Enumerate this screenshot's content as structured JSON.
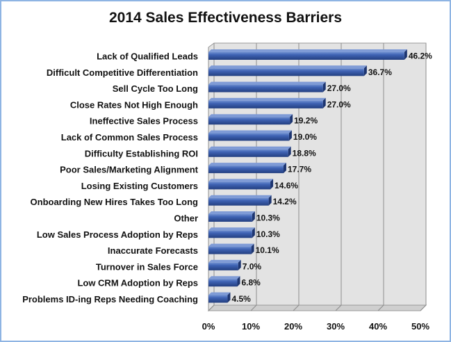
{
  "chart_data": {
    "type": "bar",
    "orientation": "horizontal",
    "title": "2014 Sales Effectiveness Barriers",
    "categories": [
      "Lack of Qualified Leads",
      "Difficult Competitive Differentiation",
      "Sell Cycle Too Long",
      "Close Rates Not High Enough",
      "Ineffective Sales Process",
      "Lack of Common Sales Process",
      "Difficulty Establishing ROI",
      "Poor Sales/Marketing Alignment",
      "Losing Existing Customers",
      "Onboarding New Hires Takes Too Long",
      "Other",
      "Low Sales Process Adoption by Reps",
      "Inaccurate Forecasts",
      "Turnover in Sales Force",
      "Low CRM Adoption by Reps",
      "Problems ID-ing Reps Needing Coaching"
    ],
    "values": [
      46.2,
      36.7,
      27.0,
      27.0,
      19.2,
      19.0,
      18.8,
      17.7,
      14.6,
      14.2,
      10.3,
      10.3,
      10.1,
      7.0,
      6.8,
      4.5
    ],
    "value_labels": [
      "46.2%",
      "36.7%",
      "27.0%",
      "27.0%",
      "19.2%",
      "19.0%",
      "18.8%",
      "17.7%",
      "14.6%",
      "14.2%",
      "10.3%",
      "10.3%",
      "10.1%",
      "7.0%",
      "6.8%",
      "4.5%"
    ],
    "xlim": [
      0,
      50
    ],
    "x_ticks": [
      0,
      10,
      20,
      30,
      40,
      50
    ],
    "x_tick_labels": [
      "0%",
      "10%",
      "20%",
      "30%",
      "40%",
      "50%"
    ],
    "grid": true,
    "legend": false,
    "bar_color": "#2f4f96",
    "plot_background": "#e3e3e3",
    "gridline_color": "#8c8c8c",
    "frame_color": "#8eb4e3"
  }
}
